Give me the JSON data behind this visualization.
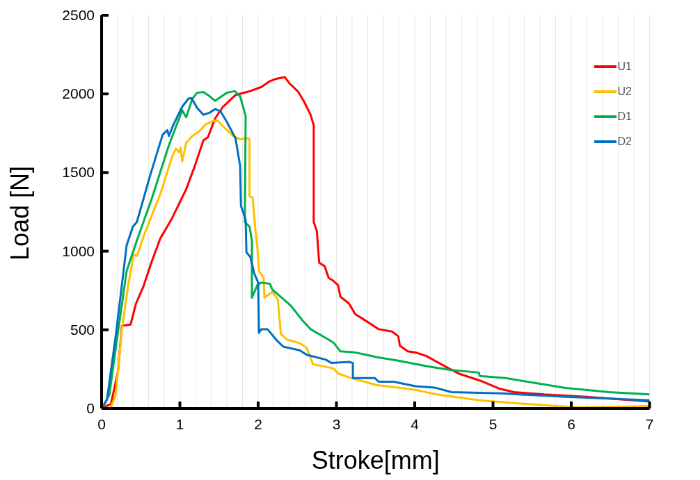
{
  "chart_data": {
    "type": "line",
    "xlabel": "Stroke[mm]",
    "ylabel": "Load [N]",
    "xlim": [
      0,
      7
    ],
    "ylim": [
      0,
      2500
    ],
    "xticks": [
      0,
      {
        "value": 0.2,
        "label": null
      },
      {
        "value": 0.4,
        "label": null
      },
      {
        "value": 0.6,
        "label": null
      },
      {
        "value": 0.8,
        "label": null
      },
      1,
      {
        "value": 1.2,
        "label": null
      },
      {
        "value": 1.4,
        "label": null
      },
      {
        "value": 1.6,
        "label": null
      },
      {
        "value": 1.8,
        "label": null
      },
      2,
      {
        "value": 2.2,
        "label": null
      },
      {
        "value": 2.4,
        "label": null
      },
      {
        "value": 2.6,
        "label": null
      },
      {
        "value": 2.8,
        "label": null
      },
      3,
      {
        "value": 3.2,
        "label": null
      },
      {
        "value": 3.4,
        "label": null
      },
      {
        "value": 3.6,
        "label": null
      },
      {
        "value": 3.8,
        "label": null
      },
      4,
      {
        "value": 4.2,
        "label": null
      },
      {
        "value": 4.4,
        "label": null
      },
      {
        "value": 4.6,
        "label": null
      },
      {
        "value": 4.8,
        "label": null
      },
      5,
      {
        "value": 5.2,
        "label": null
      },
      {
        "value": 5.4,
        "label": null
      },
      {
        "value": 5.6,
        "label": null
      },
      {
        "value": 5.8,
        "label": null
      },
      6,
      {
        "value": 6.2,
        "label": null
      },
      {
        "value": 6.4,
        "label": null
      },
      {
        "value": 6.6,
        "label": null
      },
      {
        "value": 6.8,
        "label": null
      },
      7
    ],
    "yticks": [
      0,
      500,
      1000,
      1500,
      2000,
      2500
    ],
    "grid": "x",
    "legend": "top right",
    "marker": "none",
    "line_style": "solid",
    "series": [
      {
        "name": "U1",
        "color": "#ff0000",
        "x": [
          0,
          0.12,
          0.21,
          0.26,
          0.37,
          0.44,
          0.53,
          0.64,
          0.75,
          0.89,
          1.08,
          1.19,
          1.3,
          1.36,
          1.37,
          1.45,
          1.55,
          1.71,
          1.88,
          2.04,
          2.15,
          2.23,
          2.34,
          2.4,
          2.51,
          2.59,
          2.67,
          2.71,
          2.71,
          2.75,
          2.78,
          2.85,
          2.9,
          2.95,
          3.02,
          3.05,
          3.16,
          3.24,
          3.38,
          3.54,
          3.71,
          3.79,
          3.81,
          3.91,
          4.01,
          4.15,
          4.31,
          4.42,
          4.56,
          4.83,
          5.08,
          5.27,
          5.65,
          6.2,
          7
        ],
        "values": [
          0,
          30,
          237,
          526,
          533,
          667,
          770,
          933,
          1081,
          1200,
          1393,
          1541,
          1704,
          1726,
          1740,
          1844,
          1918,
          1993,
          2015,
          2044,
          2081,
          2096,
          2107,
          2067,
          2015,
          1948,
          1867,
          1800,
          1185,
          1126,
          926,
          904,
          830,
          815,
          785,
          711,
          667,
          600,
          556,
          504,
          489,
          459,
          400,
          363,
          356,
          333,
          289,
          259,
          222,
          178,
          126,
          104,
          89,
          74,
          44
        ]
      },
      {
        "name": "U2",
        "color": "#ffc000",
        "x": [
          0.04,
          0.12,
          0.18,
          0.26,
          0.34,
          0.41,
          0.45,
          0.56,
          0.75,
          0.9,
          0.95,
          0.99,
          1.01,
          1.03,
          1.08,
          1.16,
          1.25,
          1.33,
          1.44,
          1.48,
          1.6,
          1.68,
          1.77,
          1.88,
          1.89,
          1.89,
          1.93,
          1.96,
          1.99,
          2.01,
          2.07,
          2.08,
          2.18,
          2.25,
          2.29,
          2.37,
          2.53,
          2.62,
          2.7,
          2.92,
          2.97,
          3.02,
          3.19,
          3.52,
          3.73,
          4.01,
          4.28,
          4.83,
          5.38,
          6.09,
          7
        ],
        "values": [
          0,
          7,
          89,
          504,
          785,
          978,
          970,
          1126,
          1363,
          1600,
          1652,
          1630,
          1659,
          1570,
          1689,
          1733,
          1763,
          1807,
          1830,
          1830,
          1770,
          1733,
          1711,
          1718,
          1704,
          1348,
          1341,
          1156,
          1022,
          874,
          830,
          704,
          741,
          696,
          474,
          437,
          415,
          385,
          281,
          259,
          252,
          222,
          193,
          148,
          136,
          118,
          89,
          52,
          30,
          7,
          15
        ]
      },
      {
        "name": "D1",
        "color": "#00b050",
        "x": [
          0.01,
          0.1,
          0.21,
          0.32,
          0.45,
          0.64,
          0.86,
          1.03,
          1.08,
          1.16,
          1.22,
          1.3,
          1.38,
          1.45,
          1.49,
          1.6,
          1.7,
          1.77,
          1.84,
          1.83,
          1.89,
          1.92,
          1.92,
          1.99,
          2.04,
          2.15,
          2.18,
          2.32,
          2.42,
          2.56,
          2.67,
          2.9,
          2.97,
          3.05,
          3.24,
          3.52,
          3.79,
          4.17,
          4.47,
          4.82,
          4.83,
          5.16,
          5.52,
          5.93,
          6.48,
          7
        ],
        "values": [
          0,
          89,
          489,
          874,
          1067,
          1333,
          1674,
          1896,
          1852,
          1970,
          2007,
          2012,
          1985,
          1956,
          1970,
          2007,
          2018,
          1985,
          1859,
          1185,
          1156,
          1067,
          704,
          785,
          800,
          793,
          756,
          696,
          652,
          563,
          504,
          437,
          415,
          363,
          356,
          326,
          304,
          267,
          244,
          228,
          207,
          193,
          163,
          130,
          104,
          89
        ]
      },
      {
        "name": "D2",
        "color": "#0070c0",
        "x": [
          0,
          0.07,
          0.18,
          0.32,
          0.4,
          0.45,
          0.62,
          0.78,
          0.84,
          0.86,
          0.92,
          1.03,
          1.11,
          1.15,
          1.22,
          1.3,
          1.38,
          1.45,
          1.52,
          1.6,
          1.71,
          1.77,
          1.78,
          1.84,
          1.85,
          1.9,
          1.95,
          2,
          2.01,
          2.04,
          2.12,
          2.23,
          2.32,
          2.53,
          2.62,
          2.86,
          2.94,
          3.16,
          3.21,
          3.21,
          3.49,
          3.54,
          3.73,
          4.01,
          4.25,
          4.47,
          5.1,
          5.93,
          7
        ],
        "values": [
          0,
          59,
          459,
          1037,
          1156,
          1185,
          1481,
          1741,
          1770,
          1733,
          1807,
          1919,
          1970,
          1973,
          1911,
          1867,
          1881,
          1904,
          1889,
          1822,
          1718,
          1541,
          1289,
          1200,
          993,
          963,
          859,
          800,
          481,
          504,
          504,
          437,
          393,
          370,
          341,
          311,
          289,
          296,
          289,
          193,
          193,
          170,
          170,
          141,
          133,
          104,
          96,
          74,
          52
        ]
      }
    ]
  }
}
